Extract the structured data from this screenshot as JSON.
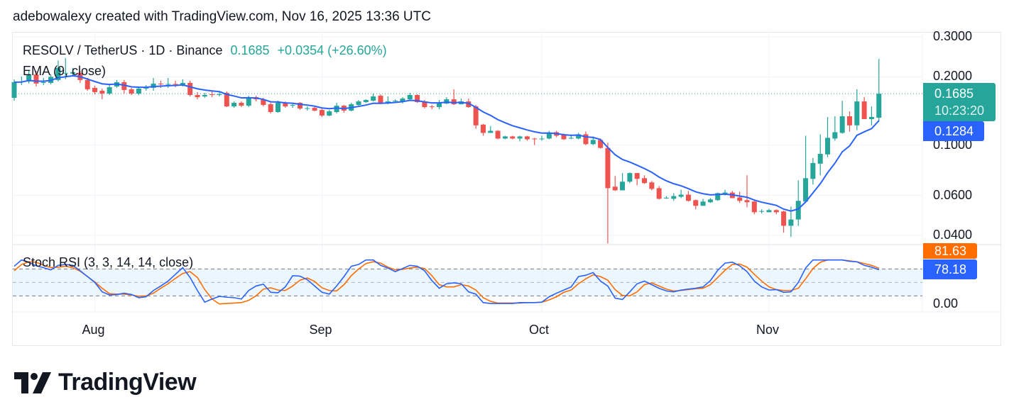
{
  "credit": "adebowalexy created with TradingView.com, Nov 16, 2025 13:36 UTC",
  "legend": {
    "symbol": "RESOLV / TetherUS · 1D · Binance",
    "last": "0.1685",
    "change": "+0.0354 (+26.60%)",
    "ema": "EMA (9, close)",
    "stoch": "Stoch RSI (3, 3, 14, 14, close)"
  },
  "price_tag": {
    "value": "0.1685",
    "countdown": "10:23:20"
  },
  "ema_tag": "0.1284",
  "stoch_tags": {
    "d": "81.63",
    "k": "78.18"
  },
  "brand": "TradingView",
  "colors": {
    "up": "#26a69a",
    "down": "#ef5350",
    "ema": "#2962ff",
    "stoch_k": "#2962ff",
    "stoch_d": "#ff6d00",
    "band": "#e3f2fd"
  },
  "chart_data": [
    {
      "type": "candlestick",
      "scale": "log",
      "ylim": [
        0.0365,
        0.316
      ],
      "grid": true,
      "y_ticks": [
        {
          "value": 0.3,
          "label": "0.3000"
        },
        {
          "value": 0.2,
          "label": "0.2000"
        },
        {
          "value": 0.1,
          "label": "0.1000"
        },
        {
          "value": 0.06,
          "label": "0.0600"
        },
        {
          "value": 0.04,
          "label": "0.0400"
        }
      ],
      "x_ticks": [
        {
          "date": "2025-08-01",
          "label": "Aug"
        },
        {
          "date": "2025-09-01",
          "label": "Sep"
        },
        {
          "date": "2025-10-01",
          "label": "Oct"
        },
        {
          "date": "2025-11-01",
          "label": "Nov"
        }
      ],
      "overlay": {
        "name": "EMA (9, close)",
        "period": 9,
        "last": 0.1284
      },
      "candles_fields": [
        "date",
        "open",
        "high",
        "low",
        "close"
      ],
      "candles": [
        [
          "2025-07-21",
          0.1616,
          0.195,
          0.157,
          0.1894
        ],
        [
          "2025-07-22",
          0.1894,
          0.2005,
          0.184,
          0.1908
        ],
        [
          "2025-07-23",
          0.1908,
          0.2123,
          0.1867,
          0.2049
        ],
        [
          "2025-07-24",
          0.2049,
          0.2123,
          0.1813,
          0.1867
        ],
        [
          "2025-07-25",
          0.188,
          0.1978,
          0.184,
          0.1894
        ],
        [
          "2025-07-26",
          0.188,
          0.2049,
          0.1853,
          0.2
        ],
        [
          "2025-07-27",
          0.1936,
          0.236,
          0.1908,
          0.219
        ],
        [
          "2025-07-28",
          0.2067,
          0.242,
          0.195,
          0.2082
        ],
        [
          "2025-07-29",
          0.2067,
          0.219,
          0.2034,
          0.2097
        ],
        [
          "2025-07-30",
          0.2082,
          0.2123,
          0.188,
          0.1936
        ],
        [
          "2025-07-31",
          0.1936,
          0.1978,
          0.1737,
          0.1762
        ],
        [
          "2025-08-01",
          0.1788,
          0.1826,
          0.1675,
          0.1712
        ],
        [
          "2025-08-02",
          0.1737,
          0.1775,
          0.1592,
          0.1687
        ],
        [
          "2025-08-03",
          0.1687,
          0.184,
          0.1663,
          0.18
        ],
        [
          "2025-08-04",
          0.1813,
          0.1936,
          0.1788,
          0.1894
        ],
        [
          "2025-08-05",
          0.1894,
          0.1936,
          0.1687,
          0.175
        ],
        [
          "2025-08-06",
          0.1762,
          0.1788,
          0.1663,
          0.1687
        ],
        [
          "2025-08-07",
          0.1687,
          0.1813,
          0.1663,
          0.1775
        ],
        [
          "2025-08-08",
          0.1775,
          0.184,
          0.1737,
          0.1788
        ],
        [
          "2025-08-09",
          0.1788,
          0.1978,
          0.1737,
          0.1867
        ],
        [
          "2025-08-10",
          0.1867,
          0.1922,
          0.1788,
          0.1853
        ],
        [
          "2025-08-11",
          0.1853,
          0.1978,
          0.1788,
          0.186
        ],
        [
          "2025-08-12",
          0.186,
          0.1922,
          0.18,
          0.1853
        ],
        [
          "2025-08-13",
          0.184,
          0.195,
          0.1813,
          0.188
        ],
        [
          "2025-08-14",
          0.188,
          0.1922,
          0.1639,
          0.1663
        ],
        [
          "2025-08-15",
          0.1663,
          0.1712,
          0.1592,
          0.1627
        ],
        [
          "2025-08-16",
          0.1639,
          0.17,
          0.1616,
          0.1663
        ],
        [
          "2025-08-17",
          0.1675,
          0.1737,
          0.1627,
          0.167
        ],
        [
          "2025-08-18",
          0.167,
          0.1725,
          0.1639,
          0.1675
        ],
        [
          "2025-08-19",
          0.17,
          0.1725,
          0.1471,
          0.1481
        ],
        [
          "2025-08-20",
          0.1481,
          0.1558,
          0.146,
          0.1536
        ],
        [
          "2025-08-21",
          0.1536,
          0.1558,
          0.1471,
          0.1492
        ],
        [
          "2025-08-22",
          0.1492,
          0.1651,
          0.1471,
          0.1627
        ],
        [
          "2025-08-23",
          0.1627,
          0.1651,
          0.1558,
          0.1592
        ],
        [
          "2025-08-24",
          0.1592,
          0.1616,
          0.1481,
          0.1503
        ],
        [
          "2025-08-25",
          0.1514,
          0.1536,
          0.1379,
          0.1399
        ],
        [
          "2025-08-26",
          0.1399,
          0.157,
          0.1389,
          0.1536
        ],
        [
          "2025-08-27",
          0.1536,
          0.1558,
          0.146,
          0.1481
        ],
        [
          "2025-08-28",
          0.1492,
          0.1536,
          0.146,
          0.1503
        ],
        [
          "2025-08-29",
          0.1536,
          0.1547,
          0.1429,
          0.145
        ],
        [
          "2025-08-30",
          0.145,
          0.1481,
          0.1419,
          0.1455
        ],
        [
          "2025-08-31",
          0.146,
          0.1471,
          0.1409,
          0.1419
        ],
        [
          "2025-09-01",
          0.1429,
          0.145,
          0.133,
          0.135
        ],
        [
          "2025-09-02",
          0.135,
          0.1429,
          0.134,
          0.1409
        ],
        [
          "2025-09-03",
          0.1399,
          0.1536,
          0.1379,
          0.1492
        ],
        [
          "2025-09-04",
          0.1492,
          0.1503,
          0.1389,
          0.1419
        ],
        [
          "2025-09-05",
          0.1419,
          0.1536,
          0.1409,
          0.1514
        ],
        [
          "2025-09-06",
          0.1503,
          0.1581,
          0.1492,
          0.1558
        ],
        [
          "2025-09-07",
          0.1547,
          0.1592,
          0.1536,
          0.1581
        ],
        [
          "2025-09-08",
          0.157,
          0.1687,
          0.1558,
          0.1639
        ],
        [
          "2025-09-09",
          0.1651,
          0.1675,
          0.1514,
          0.1525
        ],
        [
          "2025-09-10",
          0.1525,
          0.1639,
          0.1514,
          0.1558
        ],
        [
          "2025-09-11",
          0.1558,
          0.1592,
          0.1536,
          0.157
        ],
        [
          "2025-09-12",
          0.1558,
          0.1627,
          0.1525,
          0.1604
        ],
        [
          "2025-09-13",
          0.1592,
          0.17,
          0.1581,
          0.1663
        ],
        [
          "2025-09-14",
          0.1663,
          0.1675,
          0.1536,
          0.1547
        ],
        [
          "2025-09-15",
          0.1558,
          0.1581,
          0.145,
          0.1471
        ],
        [
          "2025-09-16",
          0.1481,
          0.1503,
          0.1439,
          0.1471
        ],
        [
          "2025-09-17",
          0.1471,
          0.1581,
          0.1439,
          0.1536
        ],
        [
          "2025-09-18",
          0.1525,
          0.1627,
          0.1514,
          0.1592
        ],
        [
          "2025-09-19",
          0.1592,
          0.1762,
          0.1503,
          0.1514
        ],
        [
          "2025-09-20",
          0.1514,
          0.1604,
          0.1514,
          0.1558
        ],
        [
          "2025-09-21",
          0.1558,
          0.1604,
          0.146,
          0.1471
        ],
        [
          "2025-09-22",
          0.1481,
          0.1503,
          0.118,
          0.1222
        ],
        [
          "2025-09-23",
          0.1231,
          0.124,
          0.11,
          0.1132
        ],
        [
          "2025-09-24",
          0.1132,
          0.1214,
          0.1132,
          0.1156
        ],
        [
          "2025-09-25",
          0.1156,
          0.1164,
          0.1061,
          0.1069
        ],
        [
          "2025-09-26",
          0.1069,
          0.11,
          0.1061,
          0.1092
        ],
        [
          "2025-09-27",
          0.1092,
          0.11,
          0.1061,
          0.1069
        ],
        [
          "2025-09-28",
          0.1069,
          0.11,
          0.1039,
          0.1092
        ],
        [
          "2025-09-29",
          0.1092,
          0.11,
          0.1046,
          0.1061
        ],
        [
          "2025-09-30",
          0.1069,
          0.1077,
          0.1,
          0.1061
        ],
        [
          "2025-10-01",
          0.1061,
          0.11,
          0.1046,
          0.1069
        ],
        [
          "2025-10-02",
          0.1069,
          0.1156,
          0.1061,
          0.1132
        ],
        [
          "2025-10-03",
          0.114,
          0.1156,
          0.1084,
          0.11
        ],
        [
          "2025-10-04",
          0.1108,
          0.1124,
          0.1054,
          0.1061
        ],
        [
          "2025-10-05",
          0.1069,
          0.1116,
          0.1061,
          0.1077
        ],
        [
          "2025-10-06",
          0.1069,
          0.1132,
          0.1061,
          0.1116
        ],
        [
          "2025-10-07",
          0.1116,
          0.1148,
          0.1,
          0.101
        ],
        [
          "2025-10-08",
          0.101,
          0.1092,
          0.1,
          0.1054
        ],
        [
          "2025-10-09",
          0.1054,
          0.1069,
          0.0965,
          0.0972
        ],
        [
          "2025-10-10",
          0.0972,
          0.1024,
          0.0369,
          0.0646
        ],
        [
          "2025-10-11",
          0.0656,
          0.0731,
          0.0628,
          0.0632
        ],
        [
          "2025-10-12",
          0.0632,
          0.0753,
          0.0632,
          0.069
        ],
        [
          "2025-10-13",
          0.069,
          0.0758,
          0.068,
          0.0753
        ],
        [
          "2025-10-14",
          0.0753,
          0.0753,
          0.0665,
          0.071
        ],
        [
          "2025-10-15",
          0.0715,
          0.0736,
          0.0675,
          0.068
        ],
        [
          "2025-10-16",
          0.0685,
          0.0695,
          0.0632,
          0.0641
        ],
        [
          "2025-10-17",
          0.0646,
          0.066,
          0.0576,
          0.058
        ],
        [
          "2025-10-18",
          0.0584,
          0.0596,
          0.058,
          0.0586
        ],
        [
          "2025-10-19",
          0.058,
          0.0614,
          0.0568,
          0.0596
        ],
        [
          "2025-10-20",
          0.0592,
          0.0636,
          0.0584,
          0.0605
        ],
        [
          "2025-10-21",
          0.0605,
          0.0628,
          0.0564,
          0.0568
        ],
        [
          "2025-10-22",
          0.0572,
          0.0576,
          0.0521,
          0.054
        ],
        [
          "2025-10-23",
          0.054,
          0.058,
          0.054,
          0.0564
        ],
        [
          "2025-10-24",
          0.056,
          0.0584,
          0.0556,
          0.0576
        ],
        [
          "2025-10-25",
          0.0572,
          0.0618,
          0.0568,
          0.0614
        ],
        [
          "2025-10-26",
          0.0609,
          0.0636,
          0.06,
          0.0618
        ],
        [
          "2025-10-27",
          0.0618,
          0.0628,
          0.0584,
          0.0584
        ],
        [
          "2025-10-28",
          0.0588,
          0.0623,
          0.0556,
          0.0568
        ],
        [
          "2025-10-29",
          0.0572,
          0.0736,
          0.0532,
          0.056
        ],
        [
          "2025-10-30",
          0.0564,
          0.0568,
          0.0496,
          0.0506
        ],
        [
          "2025-10-31",
          0.051,
          0.0521,
          0.05,
          0.0512
        ],
        [
          "2025-11-01",
          0.0506,
          0.0524,
          0.0506,
          0.0517
        ],
        [
          "2025-11-02",
          0.0517,
          0.0521,
          0.0496,
          0.0506
        ],
        [
          "2025-11-03",
          0.051,
          0.0514,
          0.0411,
          0.0441
        ],
        [
          "2025-11-04",
          0.0441,
          0.0536,
          0.0394,
          0.047
        ],
        [
          "2025-11-05",
          0.047,
          0.07,
          0.0441,
          0.0568
        ],
        [
          "2025-11-06",
          0.0564,
          0.11,
          0.056,
          0.0715
        ],
        [
          "2025-11-07",
          0.071,
          0.0878,
          0.067,
          0.0834
        ],
        [
          "2025-11-08",
          0.0828,
          0.1116,
          0.0736,
          0.0915
        ],
        [
          "2025-11-09",
          0.091,
          0.133,
          0.0884,
          0.1077
        ],
        [
          "2025-11-10",
          0.1069,
          0.134,
          0.1046,
          0.114
        ],
        [
          "2025-11-11",
          0.1132,
          0.157,
          0.1124,
          0.134
        ],
        [
          "2025-11-12",
          0.134,
          0.1409,
          0.1148,
          0.1222
        ],
        [
          "2025-11-13",
          0.1222,
          0.1762,
          0.1164,
          0.1558
        ],
        [
          "2025-11-14",
          0.1558,
          0.1627,
          0.1302,
          0.1302
        ],
        [
          "2025-11-15",
          0.1302,
          0.1481,
          0.1222,
          0.1331
        ],
        [
          "2025-11-16",
          0.1321,
          0.24,
          0.1266,
          0.1685
        ]
      ]
    },
    {
      "type": "line",
      "name": "Stoch RSI (3, 3, 14, 14, close)",
      "ylim": [
        0,
        100
      ],
      "bands": [
        80,
        50,
        20
      ],
      "y_ticks": [
        {
          "value": 0,
          "label": "0.00"
        }
      ],
      "series": [
        {
          "name": "K",
          "values": [
            86,
            100,
            95,
            87,
            83,
            78,
            88,
            90,
            88,
            76,
            63,
            50,
            29,
            22,
            23,
            26,
            23,
            16,
            18,
            32,
            42,
            53,
            68,
            83,
            61,
            32,
            6,
            13,
            19,
            17,
            16,
            13,
            32,
            42,
            46,
            28,
            27,
            40,
            65,
            64,
            56,
            42,
            28,
            24,
            42,
            63,
            86,
            90,
            100,
            100,
            88,
            82,
            74,
            81,
            88,
            86,
            76,
            54,
            37,
            47,
            49,
            47,
            29,
            24,
            5,
            3,
            3,
            3,
            3,
            5,
            5,
            5,
            6,
            18,
            26,
            33,
            40,
            63,
            66,
            72,
            53,
            42,
            15,
            12,
            29,
            47,
            53,
            45,
            37,
            31,
            29,
            33,
            35,
            37,
            40,
            54,
            77,
            93,
            95,
            87,
            74,
            53,
            40,
            33,
            34,
            28,
            29,
            50,
            82,
            100,
            100,
            100,
            100,
            100,
            97,
            96,
            88,
            84,
            78.18
          ]
        },
        {
          "name": "D",
          "values": [
            76,
            90,
            96,
            95,
            88,
            83,
            84,
            86,
            83,
            75,
            63,
            51,
            37,
            25,
            24,
            24,
            22,
            19,
            20,
            26,
            37,
            47,
            59,
            70,
            74,
            61,
            34,
            13,
            2,
            3,
            4,
            5,
            10,
            20,
            35,
            38,
            33,
            32,
            42,
            55,
            60,
            52,
            38,
            32,
            31,
            45,
            65,
            80,
            92,
            96,
            93,
            84,
            78,
            79,
            82,
            84,
            81,
            65,
            45,
            40,
            40,
            45,
            42,
            33,
            16,
            8,
            4,
            4,
            4,
            4,
            5,
            5,
            6,
            11,
            18,
            28,
            33,
            47,
            58,
            67,
            63,
            55,
            34,
            21,
            20,
            29,
            45,
            49,
            42,
            35,
            31,
            32,
            34,
            36,
            37,
            45,
            61,
            77,
            90,
            91,
            84,
            68,
            53,
            40,
            34,
            32,
            32,
            37,
            58,
            81,
            95,
            100,
            100,
            100,
            98,
            96,
            92,
            88,
            81.63
          ]
        }
      ]
    }
  ]
}
